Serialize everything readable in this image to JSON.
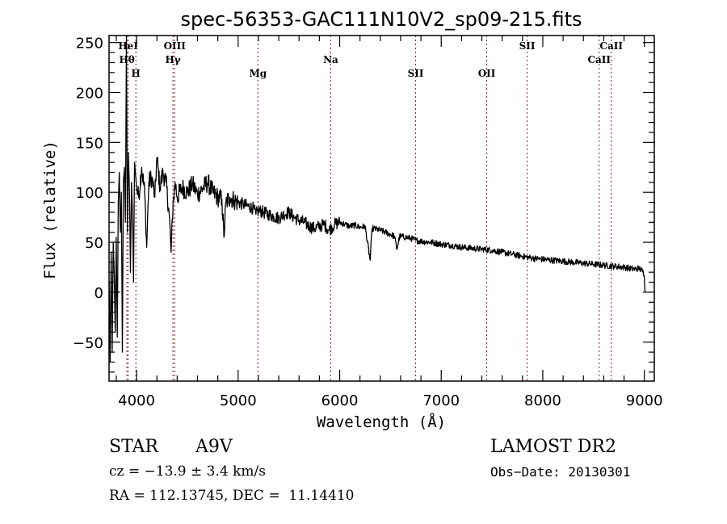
{
  "chart_data": {
    "type": "line",
    "title": "spec-56353-GAC111N10V2_sp09-215.fits",
    "xlabel": "Wavelength (Å)",
    "ylabel": "Flux (relative)",
    "xlim": [
      3729,
      9098
    ],
    "ylim": [
      -89,
      257
    ],
    "xticks": [
      4000,
      5000,
      6000,
      7000,
      8000,
      9000
    ],
    "yticks": [
      -50,
      0,
      50,
      100,
      150,
      200,
      250
    ],
    "grid": false,
    "series": [
      {
        "name": "spectrum",
        "color": "#000000",
        "anchors": [
          [
            3730,
            10
          ],
          [
            3740,
            -70
          ],
          [
            3750,
            40
          ],
          [
            3760,
            -60
          ],
          [
            3770,
            50
          ],
          [
            3780,
            20
          ],
          [
            3790,
            -40
          ],
          [
            3800,
            55
          ],
          [
            3810,
            -45
          ],
          [
            3820,
            90
          ],
          [
            3830,
            120
          ],
          [
            3840,
            60
          ],
          [
            3850,
            100
          ],
          [
            3860,
            -60
          ],
          [
            3870,
            110
          ],
          [
            3880,
            125
          ],
          [
            3890,
            70
          ],
          [
            3900,
            257
          ],
          [
            3910,
            60
          ],
          [
            3920,
            140
          ],
          [
            3930,
            100
          ],
          [
            3940,
            20
          ],
          [
            3950,
            110
          ],
          [
            3960,
            80
          ],
          [
            3970,
            10
          ],
          [
            3980,
            130
          ],
          [
            4000,
            105
          ],
          [
            4020,
            95
          ],
          [
            4050,
            125
          ],
          [
            4080,
            100
          ],
          [
            4100,
            45
          ],
          [
            4120,
            110
          ],
          [
            4150,
            115
          ],
          [
            4180,
            95
          ],
          [
            4200,
            135
          ],
          [
            4230,
            105
          ],
          [
            4260,
            120
          ],
          [
            4290,
            110
          ],
          [
            4320,
            80
          ],
          [
            4340,
            40
          ],
          [
            4360,
            90
          ],
          [
            4380,
            110
          ],
          [
            4400,
            95
          ],
          [
            4450,
            105
          ],
          [
            4500,
            100
          ],
          [
            4550,
            108
          ],
          [
            4600,
            98
          ],
          [
            4650,
            104
          ],
          [
            4700,
            110
          ],
          [
            4750,
            100
          ],
          [
            4800,
            95
          ],
          [
            4840,
            93
          ],
          [
            4860,
            55
          ],
          [
            4880,
            90
          ],
          [
            4920,
            95
          ],
          [
            4960,
            92
          ],
          [
            5000,
            90
          ],
          [
            5050,
            88
          ],
          [
            5100,
            86
          ],
          [
            5150,
            84
          ],
          [
            5175,
            78
          ],
          [
            5200,
            82
          ],
          [
            5250,
            80
          ],
          [
            5300,
            78
          ],
          [
            5350,
            76
          ],
          [
            5400,
            74
          ],
          [
            5450,
            78
          ],
          [
            5500,
            80
          ],
          [
            5550,
            75
          ],
          [
            5600,
            72
          ],
          [
            5650,
            70
          ],
          [
            5700,
            66
          ],
          [
            5750,
            64
          ],
          [
            5800,
            66
          ],
          [
            5850,
            68
          ],
          [
            5893,
            62
          ],
          [
            5950,
            68
          ],
          [
            6000,
            70
          ],
          [
            6050,
            68
          ],
          [
            6100,
            66
          ],
          [
            6150,
            67
          ],
          [
            6200,
            65
          ],
          [
            6250,
            66
          ],
          [
            6300,
            32
          ],
          [
            6320,
            64
          ],
          [
            6400,
            62
          ],
          [
            6450,
            60
          ],
          [
            6500,
            58
          ],
          [
            6540,
            56
          ],
          [
            6563,
            43
          ],
          [
            6590,
            56
          ],
          [
            6650,
            55
          ],
          [
            6700,
            54
          ],
          [
            6750,
            52
          ],
          [
            6800,
            51
          ],
          [
            6900,
            50
          ],
          [
            7000,
            48
          ],
          [
            7100,
            47
          ],
          [
            7200,
            45
          ],
          [
            7300,
            44
          ],
          [
            7400,
            43
          ],
          [
            7500,
            42
          ],
          [
            7600,
            40
          ],
          [
            7700,
            38
          ],
          [
            7800,
            36
          ],
          [
            7900,
            34
          ],
          [
            8000,
            33
          ],
          [
            8100,
            32
          ],
          [
            8200,
            31
          ],
          [
            8300,
            30
          ],
          [
            8400,
            29
          ],
          [
            8500,
            28
          ],
          [
            8600,
            27
          ],
          [
            8700,
            26
          ],
          [
            8800,
            25
          ],
          [
            8900,
            23
          ],
          [
            8950,
            24
          ],
          [
            8990,
            20
          ],
          [
            9000,
            15
          ],
          [
            9005,
            2
          ],
          [
            9010,
            0
          ]
        ],
        "noise_amplitude": 4
      }
    ],
    "emission_lines": [
      {
        "label": "HeI",
        "wavelength": 3917,
        "row": 0
      },
      {
        "label": "Hθ",
        "wavelength": 3905,
        "row": 1
      },
      {
        "label": "H",
        "wavelength": 3993,
        "row": 2
      },
      {
        "label": "OIII",
        "wavelength": 4375,
        "row": 0
      },
      {
        "label": "Hγ",
        "wavelength": 4358,
        "row": 1
      },
      {
        "label": "Mg",
        "wavelength": 5195,
        "row": 2
      },
      {
        "label": "Na",
        "wavelength": 5912,
        "row": 1
      },
      {
        "label": "SII",
        "wavelength": 6748,
        "row": 2
      },
      {
        "label": "OII",
        "wavelength": 7448,
        "row": 2
      },
      {
        "label": "SII",
        "wavelength": 7846,
        "row": 0
      },
      {
        "label": "CaII",
        "wavelength": 8555,
        "row": 1
      },
      {
        "label": "CaII",
        "wavelength": 8674,
        "row": 0
      }
    ],
    "line_color": "#8b1a1a"
  },
  "info": {
    "object_type": "STAR",
    "subclass": "A9V",
    "redshift": "cz = −13.9 ± 3.4 km/s",
    "coords": "RA = 112.13745, DEC =  11.14410",
    "survey": "LAMOST DR2",
    "obs_date": "Obs−Date: 20130301"
  }
}
